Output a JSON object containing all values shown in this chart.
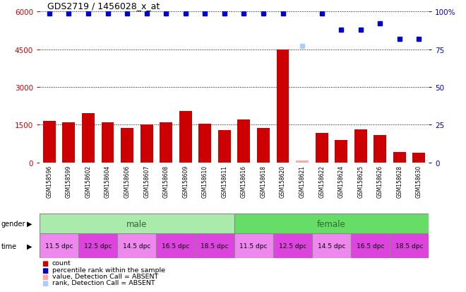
{
  "title": "GDS2719 / 1456028_x_at",
  "samples": [
    "GSM158596",
    "GSM158599",
    "GSM158602",
    "GSM158604",
    "GSM158606",
    "GSM158607",
    "GSM158608",
    "GSM158609",
    "GSM158610",
    "GSM158611",
    "GSM158616",
    "GSM158618",
    "GSM158620",
    "GSM158621",
    "GSM158622",
    "GSM158624",
    "GSM158625",
    "GSM158626",
    "GSM158628",
    "GSM158630"
  ],
  "bar_values": [
    1650,
    1580,
    1950,
    1600,
    1380,
    1520,
    1600,
    2050,
    1540,
    1280,
    1700,
    1380,
    4500,
    60,
    1180,
    900,
    1320,
    1100,
    400,
    380
  ],
  "absent_bar": [
    false,
    false,
    false,
    false,
    false,
    false,
    false,
    false,
    false,
    false,
    false,
    false,
    false,
    true,
    false,
    false,
    false,
    false,
    false,
    false
  ],
  "percentile_values": [
    99,
    99,
    99,
    99,
    99,
    99,
    99,
    99,
    99,
    99,
    99,
    99,
    99,
    77,
    99,
    88,
    88,
    92,
    82,
    82
  ],
  "absent_rank": [
    false,
    false,
    false,
    false,
    false,
    false,
    false,
    false,
    false,
    false,
    false,
    false,
    false,
    true,
    false,
    false,
    false,
    false,
    false,
    false
  ],
  "ylim_left": [
    0,
    6000
  ],
  "ylim_right": [
    0,
    100
  ],
  "yticks_left": [
    0,
    1500,
    3000,
    4500,
    6000
  ],
  "yticks_right": [
    0,
    25,
    50,
    75,
    100
  ],
  "bar_color": "#cc0000",
  "absent_bar_color": "#ffaaaa",
  "dot_color": "#0000cc",
  "absent_dot_color": "#aaccff",
  "male_color": "#aaeaaa",
  "female_color": "#66dd66",
  "time_colors": [
    "#ee88ee",
    "#dd44dd",
    "#ee88ee",
    "#dd44dd",
    "#dd44dd",
    "#ee88ee",
    "#dd44dd",
    "#ee88ee",
    "#dd44dd",
    "#dd44dd"
  ],
  "bar_color_red": "#cc0000",
  "ylabel_right_color": "#0000cc",
  "background_color": "#ffffff",
  "label_bg_color": "#dddddd"
}
